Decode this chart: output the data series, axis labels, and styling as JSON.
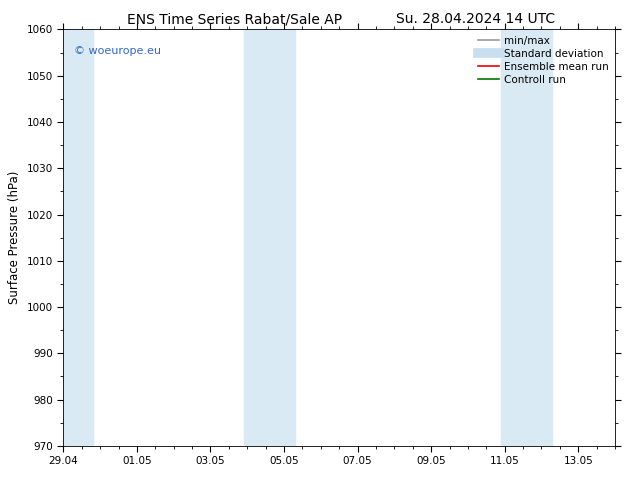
{
  "title_left": "ENS Time Series Rabat/Sale AP",
  "title_right": "Su. 28.04.2024 14 UTC",
  "ylabel": "Surface Pressure (hPa)",
  "ylim": [
    970,
    1060
  ],
  "yticks": [
    970,
    980,
    990,
    1000,
    1010,
    1020,
    1030,
    1040,
    1050,
    1060
  ],
  "xtick_labels": [
    "29.04",
    "01.05",
    "03.05",
    "05.05",
    "07.05",
    "09.05",
    "11.05",
    "13.05"
  ],
  "xlim_days": [
    0.0,
    15.0
  ],
  "shaded_regions": [
    {
      "x_start": 0.0,
      "x_end": 0.75
    },
    {
      "x_start": 5.0,
      "x_end": 5.5
    },
    {
      "x_start": 5.5,
      "x_end": 6.25
    },
    {
      "x_start": 11.0,
      "x_end": 11.5
    },
    {
      "x_start": 11.5,
      "x_end": 12.25
    }
  ],
  "shaded_color": "#daeaf5",
  "background_color": "#ffffff",
  "watermark_text": "© woeurope.eu",
  "watermark_color": "#3366cc",
  "legend_items": [
    {
      "label": "min/max",
      "color": "#999999",
      "lw": 1.2
    },
    {
      "label": "Standard deviation",
      "color": "#c8dff0",
      "lw": 7
    },
    {
      "label": "Ensemble mean run",
      "color": "#ee0000",
      "lw": 1.2
    },
    {
      "label": "Controll run",
      "color": "#007700",
      "lw": 1.2
    }
  ],
  "title_fontsize": 10,
  "tick_fontsize": 7.5,
  "ylabel_fontsize": 8.5,
  "legend_fontsize": 7.5,
  "watermark_fontsize": 8
}
